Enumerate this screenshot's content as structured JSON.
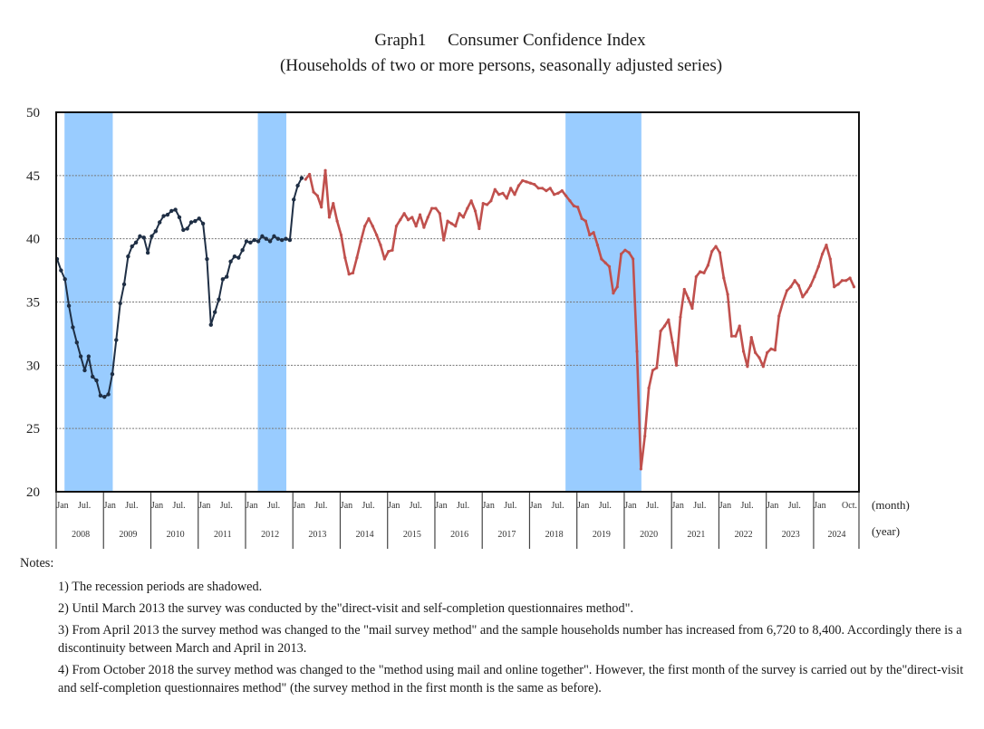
{
  "title": "Graph1  Consumer Confidence Index",
  "subtitle": "(Households of two or more persons, seasonally adjusted series)",
  "notes": {
    "heading": "Notes:",
    "items": [
      "1) The recession periods are shadowed.",
      "2) Until March 2013 the survey was conducted by the\"direct-visit and self-completion questionnaires method\".",
      "3) From April 2013 the survey method was changed to the \"mail survey method\" and the sample households number has increased from 6,720 to 8,400. Accordingly there is a discontinuity between March and April in 2013.",
      "4) From October 2018 the survey method was changed to the \"method using mail and online together\". However, the first month of the survey is carried out by the\"direct-visit and self-completion questionnaires method\" (the survey method in the first month is the same as before)."
    ]
  },
  "chart_data": {
    "type": "line",
    "title": "Graph1 Consumer Confidence Index",
    "subtitle": "(Households of two or more persons, seasonally adjusted series)",
    "xlabel_month": "(month)",
    "xlabel_year": "(year)",
    "ylabel": "",
    "ylim": [
      20,
      50
    ],
    "yticks": [
      20,
      25,
      30,
      35,
      40,
      45,
      50
    ],
    "grid": "horizontal dashed",
    "x_start": "2008-01",
    "x_end": "2024-10",
    "month_ticks": [
      "Jan",
      "Jul."
    ],
    "last_month_label": "Oct.",
    "years": [
      "2008",
      "2009",
      "2010",
      "2011",
      "2012",
      "2013",
      "2014",
      "2015",
      "2016",
      "2017",
      "2018",
      "2019",
      "2020",
      "2021",
      "2022",
      "2023",
      "2024"
    ],
    "recessions": [
      {
        "start": "2008-03",
        "end": "2009-03"
      },
      {
        "start": "2012-04",
        "end": "2012-11"
      },
      {
        "start": "2018-10",
        "end": "2020-05"
      }
    ],
    "series": [
      {
        "name": "Direct-visit and self-completion questionnaires method",
        "color": "#1f2f45",
        "start": "2008-01",
        "values": [
          38.4,
          37.5,
          36.8,
          34.7,
          33.0,
          31.8,
          30.7,
          29.6,
          30.7,
          29.1,
          28.8,
          27.6,
          27.5,
          27.7,
          29.3,
          32.0,
          34.9,
          36.4,
          38.6,
          39.4,
          39.7,
          40.2,
          40.1,
          38.9,
          40.2,
          40.6,
          41.3,
          41.8,
          41.9,
          42.2,
          42.3,
          41.7,
          40.7,
          40.8,
          41.3,
          41.4,
          41.6,
          41.2,
          38.4,
          33.2,
          34.2,
          35.2,
          36.8,
          37.0,
          38.2,
          38.6,
          38.5,
          39.1,
          39.8,
          39.7,
          39.9,
          39.8,
          40.2,
          40.0,
          39.8,
          40.2,
          40.0,
          39.9,
          40.0,
          39.9,
          43.1,
          44.2,
          44.8
        ]
      },
      {
        "name": "Mail survey method / mail and online",
        "color": "#c0504d",
        "start": "2013-04",
        "values": [
          44.7,
          45.1,
          43.7,
          43.4,
          42.5,
          45.4,
          41.7,
          42.8,
          41.4,
          40.3,
          38.5,
          37.2,
          37.3,
          38.5,
          39.8,
          41.0,
          41.6,
          41.0,
          40.3,
          39.5,
          38.4,
          39.0,
          39.1,
          41.0,
          41.5,
          42.0,
          41.5,
          41.7,
          41.0,
          41.9,
          40.9,
          41.7,
          42.4,
          42.4,
          42.0,
          39.9,
          41.4,
          41.2,
          41.0,
          42.0,
          41.7,
          42.4,
          43.0,
          42.2,
          40.8,
          42.8,
          42.7,
          43.0,
          43.9,
          43.5,
          43.6,
          43.2,
          44.0,
          43.5,
          44.2,
          44.6,
          44.5,
          44.4,
          44.3,
          44.0,
          44.0,
          43.8,
          44.0,
          43.5,
          43.6,
          43.8,
          43.4,
          43.0,
          42.6,
          42.5,
          41.6,
          41.4,
          40.3,
          40.5,
          39.5,
          38.4,
          38.1,
          37.8,
          35.7,
          36.2,
          38.8,
          39.1,
          38.9,
          38.4,
          31.1,
          21.8,
          24.4,
          28.2,
          29.6,
          29.8,
          32.7,
          33.1,
          33.6,
          31.8,
          30.0,
          33.8,
          36.0,
          35.3,
          34.5,
          37.0,
          37.4,
          37.3,
          37.9,
          39.0,
          39.4,
          38.9,
          36.9,
          35.6,
          32.3,
          32.3,
          33.1,
          31.1,
          29.9,
          32.2,
          31.0,
          30.6,
          29.9,
          31.0,
          31.3,
          31.2,
          33.9,
          35.0,
          35.9,
          36.2,
          36.7,
          36.3,
          35.4,
          35.8,
          36.3,
          37.0,
          37.8,
          38.8,
          39.5,
          38.4,
          36.2,
          36.4,
          36.7,
          36.7,
          36.9,
          36.2
        ]
      }
    ]
  }
}
